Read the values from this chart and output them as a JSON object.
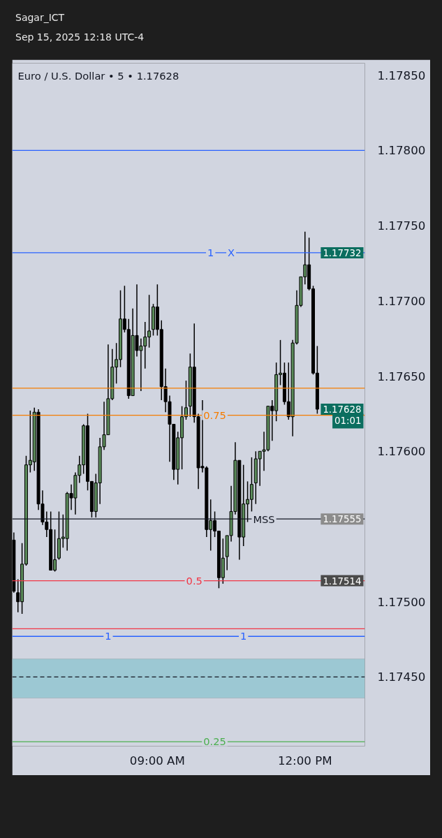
{
  "chart_data": {
    "type": "candlestick",
    "title": "Euro / U.S. Dollar • 5 • 1.17628",
    "annotations": [
      "Sagar_ICT",
      "Sep 15, 2025 12:18 UTC-4",
      {
        "text": "1.17732",
        "y": 1.17732
      },
      "1.17628",
      "01:01",
      {
        "text": "1.17555",
        "y": 1.17555
      },
      {
        "text": "1.17514",
        "y": 1.17514
      },
      {
        "text": "1",
        "x": "2025-09-15T10:05",
        "y": 1.17732
      },
      {
        "text": "X",
        "x": "2025-09-15T10:30",
        "y": 1.17732
      },
      {
        "text": "0.75",
        "x": "2025-09-15T10:10",
        "y": 1.17624
      },
      {
        "text": "MSS",
        "x": "2025-09-15T11:10",
        "y": 1.17555
      },
      {
        "text": "0.5",
        "x": "2025-09-15T09:45",
        "y": 1.17514
      },
      {
        "text": "1",
        "x": "2025-09-15T08:00",
        "y": 1.17477
      },
      {
        "text": "1",
        "x": "2025-09-15T10:45",
        "y": 1.17477
      },
      {
        "text": "0.25",
        "x": "2025-09-15T10:10",
        "y": 1.17407
      }
    ],
    "x": [
      "2025-09-15T06:05",
      "2025-09-15T06:10",
      "2025-09-15T06:15",
      "2025-09-15T06:20",
      "2025-09-15T06:25",
      "2025-09-15T06:30",
      "2025-09-15T06:35",
      "2025-09-15T06:40",
      "2025-09-15T06:45",
      "2025-09-15T06:50",
      "2025-09-15T06:55",
      "2025-09-15T07:00",
      "2025-09-15T07:05",
      "2025-09-15T07:10",
      "2025-09-15T07:15",
      "2025-09-15T07:20",
      "2025-09-15T07:25",
      "2025-09-15T07:30",
      "2025-09-15T07:35",
      "2025-09-15T07:40",
      "2025-09-15T07:45",
      "2025-09-15T07:50",
      "2025-09-15T07:55",
      "2025-09-15T08:00",
      "2025-09-15T08:05",
      "2025-09-15T08:10",
      "2025-09-15T08:15",
      "2025-09-15T08:20",
      "2025-09-15T08:25",
      "2025-09-15T08:30",
      "2025-09-15T08:35",
      "2025-09-15T08:40",
      "2025-09-15T08:45",
      "2025-09-15T08:50",
      "2025-09-15T08:55",
      "2025-09-15T09:00",
      "2025-09-15T09:05",
      "2025-09-15T09:10",
      "2025-09-15T09:15",
      "2025-09-15T09:20",
      "2025-09-15T09:25",
      "2025-09-15T09:30",
      "2025-09-15T09:35",
      "2025-09-15T09:40",
      "2025-09-15T09:45",
      "2025-09-15T09:50",
      "2025-09-15T09:55",
      "2025-09-15T10:00",
      "2025-09-15T10:05",
      "2025-09-15T10:10",
      "2025-09-15T10:15",
      "2025-09-15T10:20",
      "2025-09-15T10:25",
      "2025-09-15T10:30",
      "2025-09-15T10:35",
      "2025-09-15T10:40",
      "2025-09-15T10:45",
      "2025-09-15T10:50",
      "2025-09-15T10:55",
      "2025-09-15T11:00",
      "2025-09-15T11:05",
      "2025-09-15T11:10",
      "2025-09-15T11:15",
      "2025-09-15T11:20",
      "2025-09-15T11:25",
      "2025-09-15T11:30",
      "2025-09-15T11:35",
      "2025-09-15T11:40",
      "2025-09-15T11:45",
      "2025-09-15T11:50",
      "2025-09-15T11:55",
      "2025-09-15T12:00",
      "2025-09-15T12:05",
      "2025-09-15T12:10",
      "2025-09-15T12:15"
    ],
    "ohlc": [
      [
        1.17541,
        1.17546,
        1.17506,
        1.17507
      ],
      [
        1.17506,
        1.17515,
        1.17493,
        1.175
      ],
      [
        1.175,
        1.17539,
        1.17492,
        1.17525
      ],
      [
        1.17525,
        1.17597,
        1.17524,
        1.17591
      ],
      [
        1.17591,
        1.17627,
        1.17586,
        1.17594
      ],
      [
        1.17593,
        1.17629,
        1.17587,
        1.17626
      ],
      [
        1.17626,
        1.17628,
        1.17561,
        1.17565
      ],
      [
        1.17565,
        1.17574,
        1.17551,
        1.17553
      ],
      [
        1.17553,
        1.1756,
        1.17543,
        1.17548
      ],
      [
        1.17548,
        1.1756,
        1.17521,
        1.17521
      ],
      [
        1.17521,
        1.17548,
        1.1752,
        1.17528
      ],
      [
        1.17529,
        1.1756,
        1.17528,
        1.17542
      ],
      [
        1.17542,
        1.17558,
        1.17536,
        1.17543
      ],
      [
        1.17542,
        1.17573,
        1.17534,
        1.17572
      ],
      [
        1.17572,
        1.17578,
        1.17561,
        1.17569
      ],
      [
        1.17569,
        1.17586,
        1.17558,
        1.17584
      ],
      [
        1.17584,
        1.17597,
        1.17579,
        1.17591
      ],
      [
        1.17591,
        1.17618,
        1.17585,
        1.17617
      ],
      [
        1.17617,
        1.17625,
        1.17574,
        1.1758
      ],
      [
        1.1758,
        1.1758,
        1.17556,
        1.1756
      ],
      [
        1.1756,
        1.17585,
        1.17556,
        1.17579
      ],
      [
        1.17579,
        1.17609,
        1.17565,
        1.17603
      ],
      [
        1.17603,
        1.17633,
        1.17601,
        1.17611
      ],
      [
        1.17611,
        1.17671,
        1.17611,
        1.17635
      ],
      [
        1.17635,
        1.17668,
        1.17634,
        1.17656
      ],
      [
        1.17656,
        1.17672,
        1.17645,
        1.17661
      ],
      [
        1.17661,
        1.17707,
        1.17656,
        1.17688
      ],
      [
        1.17688,
        1.1771,
        1.17679,
        1.17681
      ],
      [
        1.17681,
        1.17688,
        1.17635,
        1.17637
      ],
      [
        1.17637,
        1.17695,
        1.17637,
        1.17677
      ],
      [
        1.17677,
        1.17711,
        1.17663,
        1.17667
      ],
      [
        1.17667,
        1.17675,
        1.1764,
        1.1767
      ],
      [
        1.1767,
        1.17686,
        1.17655,
        1.17676
      ],
      [
        1.17676,
        1.17704,
        1.17669,
        1.1768
      ],
      [
        1.17681,
        1.17698,
        1.17677,
        1.17696
      ],
      [
        1.17696,
        1.17711,
        1.17677,
        1.17681
      ],
      [
        1.17681,
        1.17687,
        1.17634,
        1.17643
      ],
      [
        1.17643,
        1.17655,
        1.17626,
        1.17633
      ],
      [
        1.17633,
        1.17637,
        1.17593,
        1.17618
      ],
      [
        1.17618,
        1.17618,
        1.17581,
        1.17588
      ],
      [
        1.17588,
        1.17613,
        1.17578,
        1.17609
      ],
      [
        1.17609,
        1.1763,
        1.17588,
        1.17623
      ],
      [
        1.17623,
        1.17647,
        1.17621,
        1.17629
      ],
      [
        1.1763,
        1.17665,
        1.17623,
        1.17656
      ],
      [
        1.17656,
        1.17685,
        1.17619,
        1.17623
      ],
      [
        1.17623,
        1.17625,
        1.17575,
        1.17589
      ],
      [
        1.1759,
        1.17634,
        1.17586,
        1.17589
      ],
      [
        1.17589,
        1.1759,
        1.17543,
        1.17548
      ],
      [
        1.17548,
        1.17568,
        1.17534,
        1.17554
      ],
      [
        1.17554,
        1.1756,
        1.17543,
        1.17547
      ],
      [
        1.17547,
        1.17547,
        1.17509,
        1.17516
      ],
      [
        1.17516,
        1.17542,
        1.17512,
        1.17529
      ],
      [
        1.1753,
        1.17544,
        1.17521,
        1.17544
      ],
      [
        1.17544,
        1.17577,
        1.1754,
        1.1756
      ],
      [
        1.1756,
        1.17606,
        1.17558,
        1.17594
      ],
      [
        1.17594,
        1.17594,
        1.17528,
        1.17543
      ],
      [
        1.17543,
        1.17591,
        1.17537,
        1.17565
      ],
      [
        1.17565,
        1.1758,
        1.17553,
        1.17568
      ],
      [
        1.17568,
        1.17596,
        1.1756,
        1.17578
      ],
      [
        1.17579,
        1.176,
        1.17565,
        1.17595
      ],
      [
        1.17595,
        1.176,
        1.17577,
        1.176
      ],
      [
        1.176,
        1.17613,
        1.17587,
        1.17601
      ],
      [
        1.17601,
        1.1763,
        1.176,
        1.1763
      ],
      [
        1.1763,
        1.17634,
        1.17607,
        1.17627
      ],
      [
        1.17627,
        1.17659,
        1.1762,
        1.17651
      ],
      [
        1.17651,
        1.17674,
        1.17644,
        1.17652
      ],
      [
        1.17652,
        1.17659,
        1.17631,
        1.17633
      ],
      [
        1.17633,
        1.17659,
        1.17621,
        1.17623
      ],
      [
        1.17623,
        1.17674,
        1.1761,
        1.17672
      ],
      [
        1.17672,
        1.17707,
        1.17671,
        1.17697
      ],
      [
        1.17697,
        1.17716,
        1.17696,
        1.17716
      ],
      [
        1.17716,
        1.17746,
        1.17711,
        1.17724
      ],
      [
        1.17724,
        1.17742,
        1.17707,
        1.17708
      ],
      [
        1.17708,
        1.1771,
        1.17651,
        1.17652
      ],
      [
        1.17652,
        1.1767,
        1.17625,
        1.17628
      ]
    ],
    "colors": [
      "#000000",
      "#000000",
      "#5b8c5a",
      "#5b8c5a",
      "#5b8c5a",
      "#5b8c5a",
      "#000000",
      "#000000",
      "#000000",
      "#000000",
      "#5b8c5a",
      "#5b8c5a",
      "#5b8c5a",
      "#5b8c5a",
      "#000000",
      "#5b8c5a",
      "#5b8c5a",
      "#5b8c5a",
      "#000000",
      "#000000",
      "#5b8c5a",
      "#5b8c5a",
      "#5b8c5a",
      "#5b8c5a",
      "#5b8c5a",
      "#5b8c5a",
      "#5b8c5a",
      "#000000",
      "#000000",
      "#5b8c5a",
      "#000000",
      "#5b8c5a",
      "#5b8c5a",
      "#5b8c5a",
      "#5b8c5a",
      "#000000",
      "#000000",
      "#000000",
      "#000000",
      "#000000",
      "#5b8c5a",
      "#5b8c5a",
      "#5b8c5a",
      "#5b8c5a",
      "#000000",
      "#000000",
      "#000000",
      "#000000",
      "#5b8c5a",
      "#000000",
      "#000000",
      "#5b8c5a",
      "#5b8c5a",
      "#5b8c5a",
      "#5b8c5a",
      "#000000",
      "#5b8c5a",
      "#5b8c5a",
      "#5b8c5a",
      "#5b8c5a",
      "#5b8c5a",
      "#5b8c5a",
      "#5b8c5a",
      "#000000",
      "#5b8c5a",
      "#5b8c5a",
      "#000000",
      "#000000",
      "#5b8c5a",
      "#5b8c5a",
      "#5b8c5a",
      "#5b8c5a",
      "#000000",
      "#000000",
      "#000000"
    ],
    "xlim": [
      "2025-09-15T06:03",
      "2025-09-15T13:13"
    ],
    "xticks": [
      {
        "value": "2025-09-15T09:00",
        "label": "09:00 AM"
      },
      {
        "value": "2025-09-15T12:00",
        "label": "12:00 PM"
      }
    ],
    "ylim": [
      1.17404,
      1.17858
    ],
    "yticks": [
      {
        "value": 1.1785,
        "label": "1.17850"
      },
      {
        "value": 1.178,
        "label": "1.17800"
      },
      {
        "value": 1.1775,
        "label": "1.17750"
      },
      {
        "value": 1.177,
        "label": "1.17700"
      },
      {
        "value": 1.1765,
        "label": "1.17650"
      },
      {
        "value": 1.176,
        "label": "1.17600"
      },
      {
        "value": 1.175,
        "label": "1.17500"
      },
      {
        "value": 1.1745,
        "label": "1.17450"
      }
    ],
    "ref_lines": [
      {
        "axis": "y",
        "value": 1.178,
        "color": "#2962ff"
      },
      {
        "axis": "y",
        "value": 1.17732,
        "color": "#2962ff"
      },
      {
        "axis": "y",
        "value": 1.17642,
        "color": "#f57c00"
      },
      {
        "axis": "y",
        "value": 1.17624,
        "color": "#f57c00"
      },
      {
        "axis": "y",
        "value": 1.17555,
        "color": "#131722"
      },
      {
        "axis": "y",
        "value": 1.17514,
        "color": "#f23645"
      },
      {
        "axis": "y",
        "value": 1.17482,
        "color": "#f23645"
      },
      {
        "axis": "y",
        "value": 1.17477,
        "color": "#2962ff"
      },
      {
        "axis": "y",
        "value": 1.1745,
        "color": "#131722",
        "line_style": "dashed"
      },
      {
        "axis": "y",
        "value": 1.17407,
        "color": "#4caf50"
      }
    ],
    "bands": [
      {
        "axis": "y",
        "from": 1.17436,
        "to": 1.17462,
        "color": "#9cc8d3"
      }
    ],
    "grid": false
  }
}
